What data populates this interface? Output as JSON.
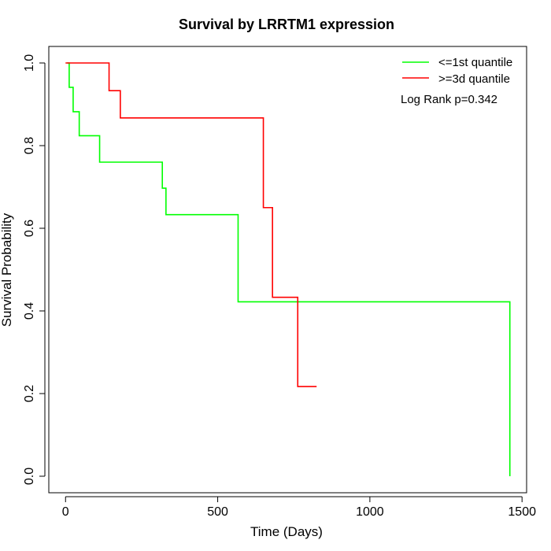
{
  "chart_data": {
    "type": "line",
    "title": "Survival by LRRTM1 expression",
    "xlabel": "Time (Days)",
    "ylabel": "Survival Probability",
    "xlim": [
      -55,
      1515
    ],
    "ylim": [
      -0.04,
      1.04
    ],
    "xticks": [
      0,
      500,
      1000,
      1500
    ],
    "yticks": [
      0.0,
      0.2,
      0.4,
      0.6,
      0.8,
      1.0
    ],
    "xtick_labels": [
      "0",
      "500",
      "1000",
      "1500"
    ],
    "ytick_labels": [
      "0.0",
      "0.2",
      "0.4",
      "0.6",
      "0.8",
      "1.0"
    ],
    "grid": false,
    "legend_position": "top-right",
    "series": [
      {
        "name": "<=1st quantile",
        "color": "#00ff00",
        "step": true,
        "x": [
          5,
          12,
          25,
          45,
          112,
          318,
          330,
          567,
          1460,
          1460
        ],
        "y": [
          1.0,
          0.941,
          0.882,
          0.824,
          0.76,
          0.697,
          0.633,
          0.422,
          0.422,
          0.0
        ]
      },
      {
        "name": ">=3d quantile",
        "color": "#ff0000",
        "step": true,
        "x": [
          0,
          143,
          180,
          650,
          680,
          763,
          825
        ],
        "y": [
          1.0,
          0.933,
          0.867,
          0.65,
          0.433,
          0.217,
          0.217
        ]
      }
    ],
    "annotations": [
      {
        "text": "Log Rank p=0.342",
        "position": "top-right"
      }
    ]
  }
}
